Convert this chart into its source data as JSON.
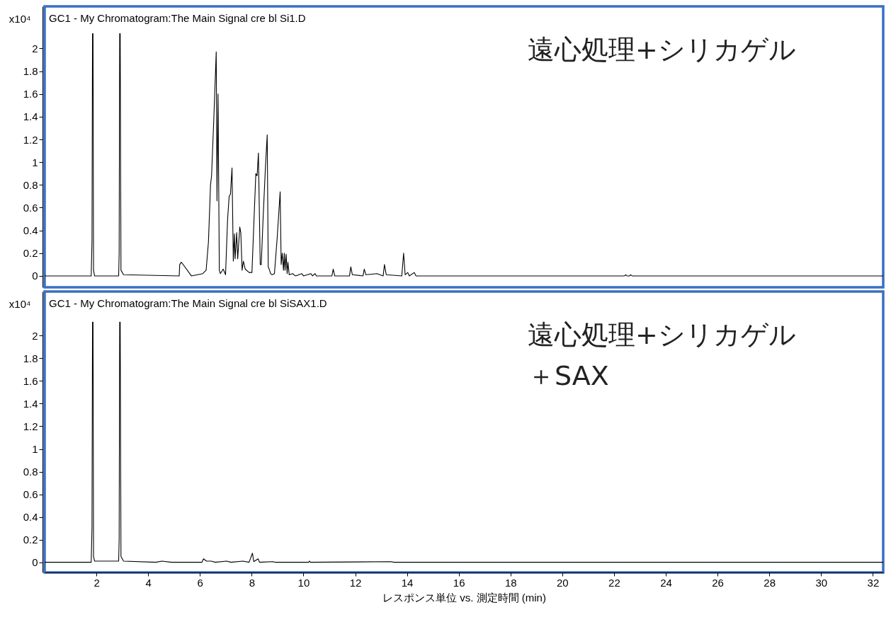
{
  "chart_data": [
    {
      "type": "line",
      "title": "GC1 - My Chromatogram:The Main Signal cre bl Si1.D",
      "ylabel": "x10⁴",
      "annotations": [
        "遠心処理+シリカゲル"
      ],
      "color": "#000000",
      "tick_labels": "y",
      "xlim": [
        0,
        32.4
      ],
      "ylim": [
        -0.1,
        2.37
      ],
      "yticks": [
        0,
        0.2,
        0.4,
        0.6,
        0.8,
        1,
        1.2,
        1.4,
        1.6,
        1.8,
        2
      ],
      "x": [
        0,
        1.8,
        1.83,
        1.85,
        1.87,
        1.89,
        1.93,
        2.86,
        2.88,
        2.9,
        2.92,
        2.95,
        3.05,
        5.2,
        5.22,
        5.28,
        5.32,
        5.67,
        6.11,
        6.24,
        6.33,
        6.41,
        6.45,
        6.54,
        6.63,
        6.66,
        6.7,
        6.75,
        6.79,
        6.9,
        6.99,
        7.07,
        7.13,
        7.18,
        7.24,
        7.29,
        7.33,
        7.36,
        7.42,
        7.46,
        7.54,
        7.58,
        7.63,
        7.68,
        7.75,
        7.9,
        8.01,
        8.16,
        8.21,
        8.26,
        8.33,
        8.37,
        8.44,
        8.53,
        8.6,
        8.64,
        8.69,
        8.73,
        8.79,
        8.88,
        8.99,
        9.1,
        9.14,
        9.18,
        9.23,
        9.26,
        9.29,
        9.33,
        9.37,
        9.4,
        9.45,
        9.58,
        9.69,
        9.94,
        10.0,
        10.29,
        10.35,
        10.45,
        10.5,
        11.1,
        11.15,
        11.21,
        11.78,
        11.83,
        11.89,
        12.3,
        12.35,
        12.41,
        12.84,
        13.08,
        13.13,
        13.2,
        13.8,
        13.87,
        13.93,
        14.03,
        14.09,
        14.28,
        14.35,
        22.4,
        22.45,
        22.5,
        22.6,
        22.64,
        22.7,
        32.4
      ],
      "values": [
        0,
        0,
        0.3,
        2.13,
        2.13,
        0.05,
        0,
        0,
        0.2,
        2.13,
        2.13,
        0.05,
        0.01,
        0,
        0.1,
        0.12,
        0.11,
        0,
        0.02,
        0.05,
        0.3,
        0.8,
        0.88,
        1.4,
        1.97,
        0.66,
        1.6,
        0.05,
        0.02,
        0.06,
        0.01,
        0.5,
        0.7,
        0.72,
        0.95,
        0.13,
        0.37,
        0.15,
        0.38,
        0.15,
        0.43,
        0.38,
        0.05,
        0.13,
        0.06,
        0.03,
        0.03,
        0.9,
        0.88,
        1.08,
        0.1,
        0.1,
        0.5,
        0.95,
        1.24,
        0.08,
        0.05,
        0.02,
        0.01,
        0.02,
        0.35,
        0.74,
        0.1,
        0.2,
        0.05,
        0.2,
        0.05,
        0.19,
        0.02,
        0.12,
        0.01,
        0.02,
        0,
        0.02,
        0,
        0.02,
        0,
        0.02,
        0,
        0,
        0.06,
        0,
        0,
        0.08,
        0.01,
        0,
        0.06,
        0.01,
        0.02,
        0,
        0.1,
        0.01,
        0,
        0.2,
        0.01,
        0.03,
        0,
        0.03,
        0,
        0,
        0.01,
        0,
        0,
        0.01,
        0,
        0
      ]
    },
    {
      "type": "line",
      "title": "GC1 - My Chromatogram:The Main Signal cre bl SiSAX1.D",
      "ylabel": "x10⁴",
      "xlabel": "レスポンス単位 vs. 測定時間 (min)",
      "annotations": [
        "遠心処理+シリカゲル",
        "＋SAX"
      ],
      "color": "#000000",
      "xlim": [
        0,
        32.4
      ],
      "xticks": [
        2,
        4,
        6,
        8,
        10,
        12,
        14,
        16,
        18,
        20,
        22,
        24,
        26,
        28,
        30,
        32
      ],
      "ylim": [
        -0.09,
        2.39
      ],
      "yticks": [
        0,
        0.2,
        0.4,
        0.6,
        0.8,
        1,
        1.2,
        1.4,
        1.6,
        1.8,
        2
      ],
      "x": [
        0,
        1.8,
        1.83,
        1.85,
        1.87,
        1.89,
        1.93,
        2.86,
        2.88,
        2.9,
        2.92,
        2.95,
        3.05,
        4.3,
        4.53,
        4.9,
        6.08,
        6.14,
        6.25,
        6.43,
        6.6,
        7.03,
        7.2,
        7.66,
        7.9,
        8.03,
        8.08,
        8.25,
        8.3,
        8.82,
        8.9,
        10.2,
        10.23,
        10.27,
        13.37,
        13.5,
        32.4
      ],
      "values": [
        0,
        0,
        0.3,
        2.12,
        2.12,
        0.05,
        0.01,
        0.01,
        0.2,
        2.12,
        2.12,
        0.05,
        0.01,
        0,
        0.01,
        0,
        0,
        0.03,
        0.01,
        0.01,
        0,
        0.01,
        0,
        0.01,
        0,
        0.08,
        0.005,
        0.03,
        0,
        0.005,
        0,
        0,
        0.01,
        0,
        0.005,
        0,
        0
      ]
    }
  ]
}
